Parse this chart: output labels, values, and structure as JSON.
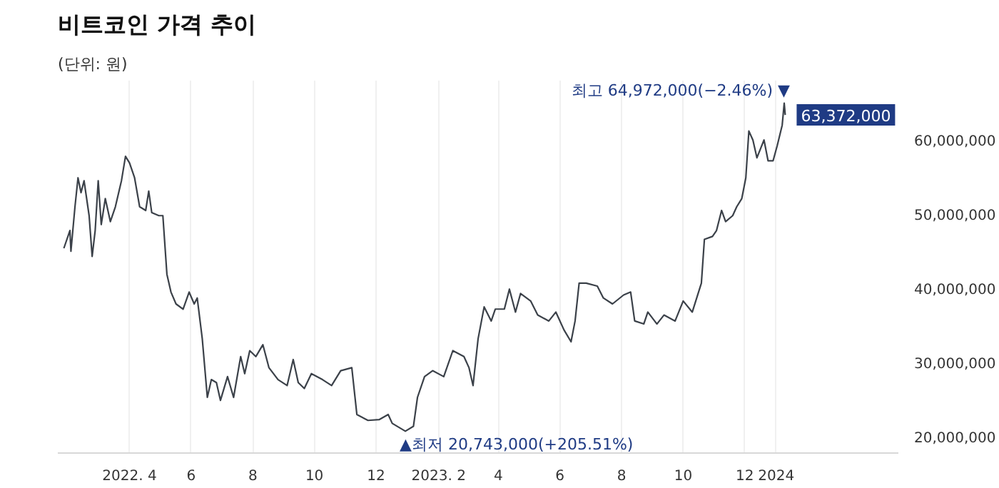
{
  "chart_data": {
    "type": "line",
    "title": "비트코인 가격 추이",
    "subtitle": "(단위: 원)",
    "x": [
      "2022-01-26",
      "2022-02-01",
      "2022-02-02",
      "2022-02-06",
      "2022-02-09",
      "2022-02-12",
      "2022-02-15",
      "2022-02-20",
      "2022-02-23",
      "2022-02-26",
      "2022-03-01",
      "2022-03-04",
      "2022-03-08",
      "2022-03-13",
      "2022-03-18",
      "2022-03-24",
      "2022-03-28",
      "2022-04-01",
      "2022-04-06",
      "2022-04-11",
      "2022-04-17",
      "2022-04-20",
      "2022-04-23",
      "2022-04-30",
      "2022-05-04",
      "2022-05-08",
      "2022-05-12",
      "2022-05-17",
      "2022-05-24",
      "2022-05-30",
      "2022-06-04",
      "2022-06-07",
      "2022-06-12",
      "2022-06-17",
      "2022-06-21",
      "2022-06-26",
      "2022-06-30",
      "2022-07-07",
      "2022-07-13",
      "2022-07-20",
      "2022-07-24",
      "2022-07-29",
      "2022-08-04",
      "2022-08-11",
      "2022-08-17",
      "2022-08-26",
      "2022-09-04",
      "2022-09-10",
      "2022-09-15",
      "2022-09-21",
      "2022-09-28",
      "2022-10-09",
      "2022-10-18",
      "2022-10-27",
      "2022-11-07",
      "2022-11-12",
      "2022-11-23",
      "2022-12-04",
      "2022-12-13",
      "2022-12-17",
      "2022-12-30",
      "2023-01-07",
      "2023-01-11",
      "2023-01-18",
      "2023-01-26",
      "2023-02-06",
      "2023-02-15",
      "2023-02-26",
      "2023-03-03",
      "2023-03-07",
      "2023-03-12",
      "2023-03-18",
      "2023-03-25",
      "2023-03-29",
      "2023-04-07",
      "2023-04-12",
      "2023-04-18",
      "2023-04-23",
      "2023-05-03",
      "2023-05-10",
      "2023-05-21",
      "2023-05-28",
      "2023-06-05",
      "2023-06-12",
      "2023-06-16",
      "2023-06-20",
      "2023-06-27",
      "2023-07-08",
      "2023-07-14",
      "2023-07-23",
      "2023-08-03",
      "2023-08-10",
      "2023-08-14",
      "2023-08-23",
      "2023-08-27",
      "2023-09-05",
      "2023-09-12",
      "2023-09-23",
      "2023-10-01",
      "2023-10-10",
      "2023-10-19",
      "2023-10-22",
      "2023-10-30",
      "2023-11-03",
      "2023-11-08",
      "2023-11-12",
      "2023-11-19",
      "2023-11-23",
      "2023-11-28",
      "2023-12-02",
      "2023-12-05",
      "2023-12-09",
      "2023-12-13",
      "2023-12-20",
      "2023-12-24",
      "2023-12-29",
      "2024-01-02",
      "2024-01-07",
      "2024-01-09",
      "2024-01-10"
    ],
    "series": [
      {
        "color": "#3b4149",
        "values": [
          45400000,
          47800000,
          45000000,
          51000000,
          54900000,
          52900000,
          54500000,
          49800000,
          44300000,
          47800000,
          54500000,
          48600000,
          52100000,
          49000000,
          51000000,
          54500000,
          57800000,
          56900000,
          54900000,
          51000000,
          50500000,
          53100000,
          50200000,
          49800000,
          49800000,
          41900000,
          39500000,
          37900000,
          37200000,
          39500000,
          37900000,
          38700000,
          33200000,
          25300000,
          27700000,
          27300000,
          24900000,
          28100000,
          25300000,
          30800000,
          28500000,
          31600000,
          30800000,
          32400000,
          29300000,
          27700000,
          26900000,
          30400000,
          27300000,
          26500000,
          28500000,
          27700000,
          26900000,
          28900000,
          29300000,
          23000000,
          22200000,
          22300000,
          23000000,
          21800000,
          20743000,
          21400000,
          25300000,
          28100000,
          28900000,
          28100000,
          31600000,
          30800000,
          29300000,
          26900000,
          33200000,
          37500000,
          35600000,
          37200000,
          37200000,
          39900000,
          36800000,
          39300000,
          38300000,
          36400000,
          35600000,
          36800000,
          34400000,
          32800000,
          35600000,
          40700000,
          40700000,
          40300000,
          38700000,
          37900000,
          39100000,
          39500000,
          35600000,
          35200000,
          36800000,
          35200000,
          36400000,
          35600000,
          38300000,
          36800000,
          40700000,
          46600000,
          47000000,
          47800000,
          50500000,
          49000000,
          49800000,
          51000000,
          52100000,
          54900000,
          61200000,
          60000000,
          57600000,
          60000000,
          57200000,
          57200000,
          59200000,
          62000000,
          64972000,
          63372000
        ]
      }
    ],
    "xlim": [
      "2022-01-20",
      "2024-05-01"
    ],
    "ylim": [
      17800000,
      68000000
    ],
    "xticks": [
      {
        "value": "2022-04-01",
        "label": "2022. 4"
      },
      {
        "value": "2022-06-01",
        "label": "6"
      },
      {
        "value": "2022-08-01",
        "label": "8"
      },
      {
        "value": "2022-10-01",
        "label": "10"
      },
      {
        "value": "2022-12-01",
        "label": "12"
      },
      {
        "value": "2023-02-01",
        "label": "2023. 2"
      },
      {
        "value": "2023-04-01",
        "label": "4"
      },
      {
        "value": "2023-06-01",
        "label": "6"
      },
      {
        "value": "2023-08-01",
        "label": "8"
      },
      {
        "value": "2023-10-01",
        "label": "10"
      },
      {
        "value": "2023-12-01",
        "label": "12"
      },
      {
        "value": "2024-01-01",
        "label": "2024"
      }
    ],
    "yticks": [
      {
        "value": 20000000,
        "label": "20,000,000"
      },
      {
        "value": 30000000,
        "label": "30,000,000"
      },
      {
        "value": 40000000,
        "label": "40,000,000"
      },
      {
        "value": 50000000,
        "label": "50,000,000"
      },
      {
        "value": 60000000,
        "label": "60,000,000"
      }
    ],
    "grid": "x",
    "annotations": [
      {
        "text": "▲최저 20,743,000(+205.51%)",
        "x": "2022-12-30",
        "y": 20743000
      },
      {
        "text": "최고 64,972,000(−2.46%) ▼",
        "x": "2024-01-09",
        "y": 64972000
      },
      {
        "text": "63,372,000",
        "x": "2024-01-10",
        "y": 63372000
      }
    ]
  }
}
